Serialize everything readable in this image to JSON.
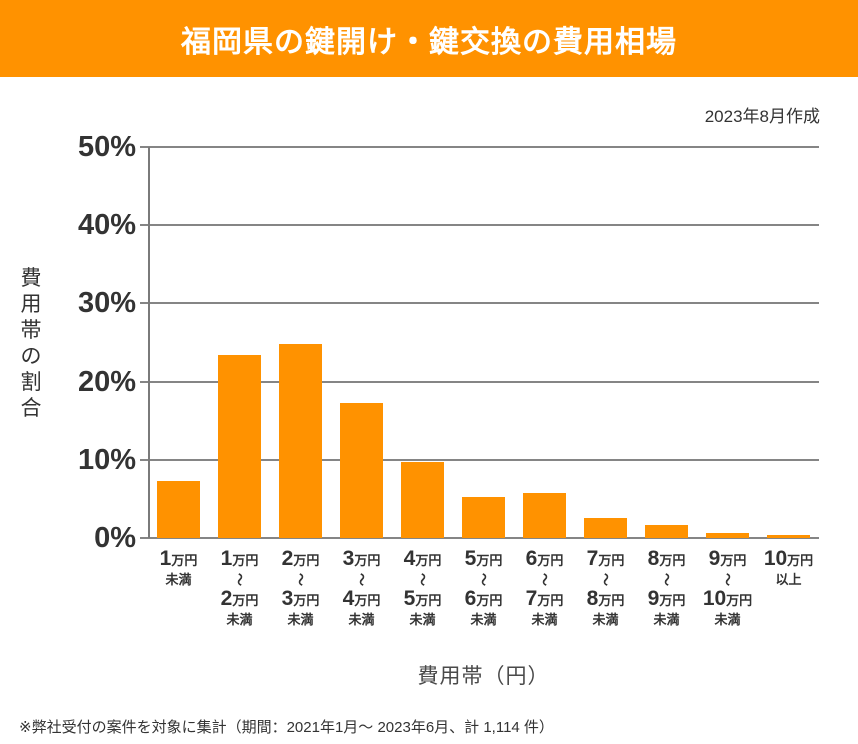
{
  "banner": {
    "title": "福岡県の鍵開け・鍵交換の費用相場",
    "bg_color": "#FF9200"
  },
  "meta": {
    "created": "2023年8月作成"
  },
  "chart_data": {
    "type": "bar",
    "title": "福岡県の鍵開け・鍵交換の費用相場",
    "ylabel": "費用帯の割合",
    "xlabel": "費用帯（円）",
    "ylim": [
      0,
      50
    ],
    "y_ticks": [
      "50%",
      "40%",
      "30%",
      "20%",
      "10%",
      "0%"
    ],
    "grid": true,
    "legend": "none",
    "bar_color": "#FF9200",
    "grid_color": "#858585",
    "text_color": "#333333",
    "categories": [
      "1万円未満",
      "1万円～2万円未満",
      "2万円～3万円未満",
      "3万円～4万円未満",
      "4万円～5万円未満",
      "5万円～6万円未満",
      "6万円～7万円未満",
      "7万円～8万円未満",
      "8万円～9万円未満",
      "9万円～10万円未満",
      "10万円以上"
    ],
    "values": [
      7.3,
      23.4,
      24.8,
      17.3,
      9.7,
      5.2,
      5.8,
      2.6,
      1.7,
      0.6,
      0.4
    ],
    "x_tick_rows": [
      {
        "rows": [
          {
            "big": "1",
            "small": "万円"
          },
          {
            "sub": "未満"
          }
        ]
      },
      {
        "rows": [
          {
            "big": "1",
            "small": "万円"
          },
          {
            "wave": "～"
          },
          {
            "big": "2",
            "small": "万円"
          },
          {
            "sub": "未満"
          }
        ]
      },
      {
        "rows": [
          {
            "big": "2",
            "small": "万円"
          },
          {
            "wave": "～"
          },
          {
            "big": "3",
            "small": "万円"
          },
          {
            "sub": "未満"
          }
        ]
      },
      {
        "rows": [
          {
            "big": "3",
            "small": "万円"
          },
          {
            "wave": "～"
          },
          {
            "big": "4",
            "small": "万円"
          },
          {
            "sub": "未満"
          }
        ]
      },
      {
        "rows": [
          {
            "big": "4",
            "small": "万円"
          },
          {
            "wave": "～"
          },
          {
            "big": "5",
            "small": "万円"
          },
          {
            "sub": "未満"
          }
        ]
      },
      {
        "rows": [
          {
            "big": "5",
            "small": "万円"
          },
          {
            "wave": "～"
          },
          {
            "big": "6",
            "small": "万円"
          },
          {
            "sub": "未満"
          }
        ]
      },
      {
        "rows": [
          {
            "big": "6",
            "small": "万円"
          },
          {
            "wave": "～"
          },
          {
            "big": "7",
            "small": "万円"
          },
          {
            "sub": "未満"
          }
        ]
      },
      {
        "rows": [
          {
            "big": "7",
            "small": "万円"
          },
          {
            "wave": "～"
          },
          {
            "big": "8",
            "small": "万円"
          },
          {
            "sub": "未満"
          }
        ]
      },
      {
        "rows": [
          {
            "big": "8",
            "small": "万円"
          },
          {
            "wave": "～"
          },
          {
            "big": "9",
            "small": "万円"
          },
          {
            "sub": "未満"
          }
        ]
      },
      {
        "rows": [
          {
            "big": "9",
            "small": "万円"
          },
          {
            "wave": "～"
          },
          {
            "big": "10",
            "small": "万円"
          },
          {
            "sub": "未満"
          }
        ]
      },
      {
        "rows": [
          {
            "big": "10",
            "small": "万円"
          },
          {
            "sub": "以上"
          }
        ]
      }
    ]
  },
  "footer": {
    "note": "※弊社受付の案件を対象に集計（期間：2021年1月～ 2023年6月、計 1,114 件）"
  }
}
